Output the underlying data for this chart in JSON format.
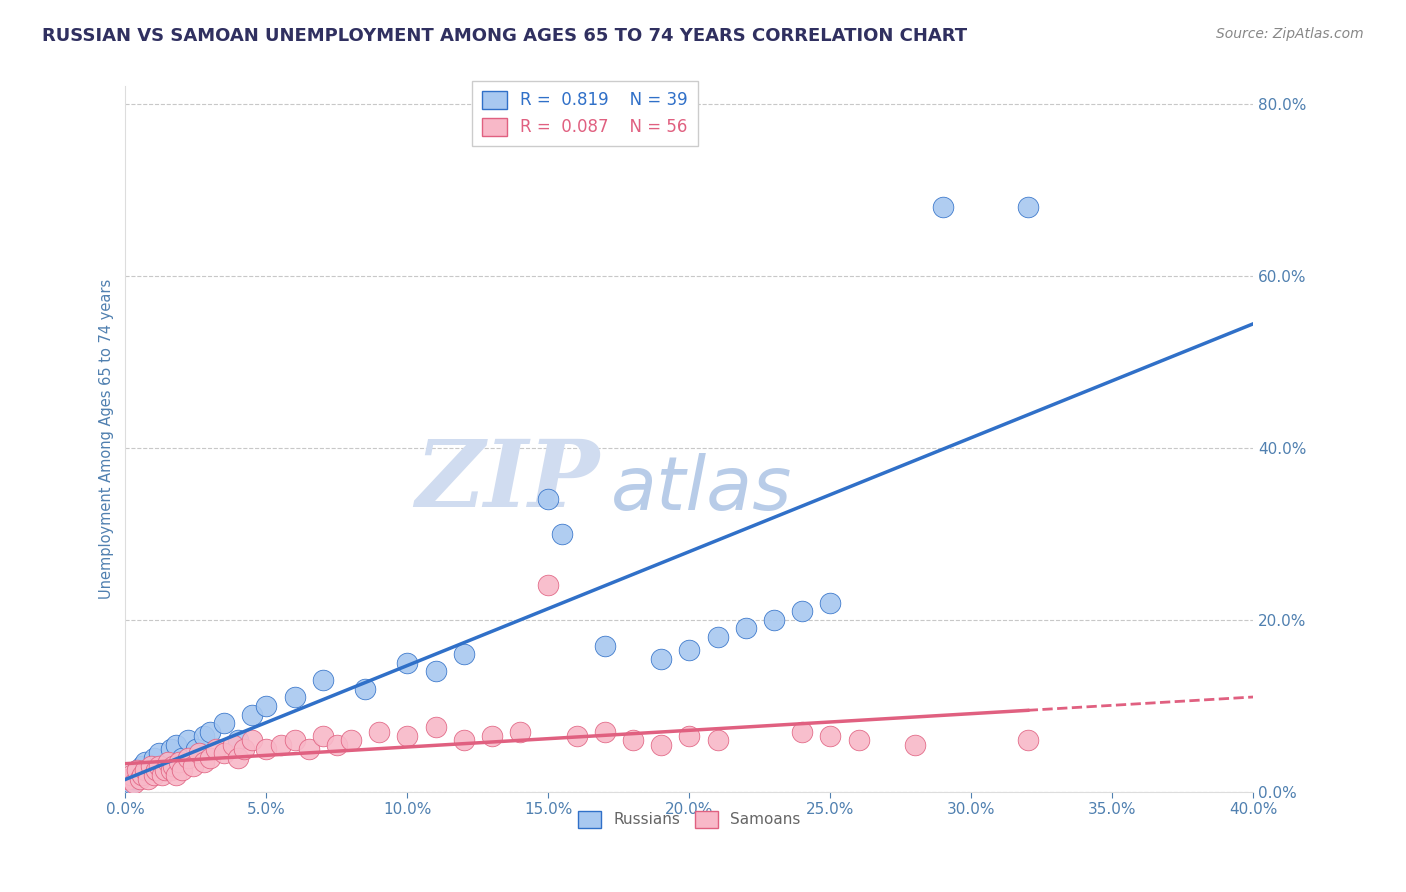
{
  "title": "RUSSIAN VS SAMOAN UNEMPLOYMENT AMONG AGES 65 TO 74 YEARS CORRELATION CHART",
  "source": "Source: ZipAtlas.com",
  "ylabel": "Unemployment Among Ages 65 to 74 years",
  "xlim": [
    0.0,
    0.4
  ],
  "ylim": [
    0.0,
    0.82
  ],
  "yticks": [
    0.0,
    0.2,
    0.4,
    0.6,
    0.8
  ],
  "xticks": [
    0.0,
    0.05,
    0.1,
    0.15,
    0.2,
    0.25,
    0.3,
    0.35,
    0.4
  ],
  "russian_color": "#A8C8F0",
  "samoan_color": "#F8B8C8",
  "russian_line_color": "#3070C8",
  "samoan_line_color": "#E06080",
  "legend_R_russian": "R =  0.819",
  "legend_N_russian": "N = 39",
  "legend_R_samoan": "R =  0.087",
  "legend_N_samoan": "N = 56",
  "russian_x": [
    0.002,
    0.003,
    0.004,
    0.005,
    0.006,
    0.007,
    0.008,
    0.01,
    0.012,
    0.014,
    0.016,
    0.018,
    0.02,
    0.022,
    0.025,
    0.028,
    0.03,
    0.035,
    0.04,
    0.045,
    0.05,
    0.06,
    0.07,
    0.085,
    0.1,
    0.11,
    0.12,
    0.15,
    0.155,
    0.17,
    0.19,
    0.2,
    0.21,
    0.22,
    0.23,
    0.24,
    0.25,
    0.29,
    0.32
  ],
  "russian_y": [
    0.01,
    0.015,
    0.025,
    0.02,
    0.03,
    0.035,
    0.025,
    0.04,
    0.045,
    0.03,
    0.05,
    0.055,
    0.04,
    0.06,
    0.05,
    0.065,
    0.07,
    0.08,
    0.06,
    0.09,
    0.1,
    0.11,
    0.13,
    0.12,
    0.15,
    0.14,
    0.16,
    0.34,
    0.3,
    0.17,
    0.155,
    0.165,
    0.18,
    0.19,
    0.2,
    0.21,
    0.22,
    0.68,
    0.68
  ],
  "samoan_x": [
    0.001,
    0.002,
    0.003,
    0.004,
    0.005,
    0.006,
    0.007,
    0.008,
    0.009,
    0.01,
    0.011,
    0.012,
    0.013,
    0.014,
    0.015,
    0.016,
    0.017,
    0.018,
    0.019,
    0.02,
    0.022,
    0.024,
    0.026,
    0.028,
    0.03,
    0.032,
    0.035,
    0.038,
    0.04,
    0.042,
    0.045,
    0.05,
    0.055,
    0.06,
    0.065,
    0.07,
    0.075,
    0.08,
    0.09,
    0.1,
    0.11,
    0.12,
    0.13,
    0.14,
    0.15,
    0.16,
    0.17,
    0.18,
    0.19,
    0.2,
    0.21,
    0.24,
    0.25,
    0.26,
    0.28,
    0.32
  ],
  "samoan_y": [
    0.015,
    0.02,
    0.01,
    0.025,
    0.015,
    0.02,
    0.025,
    0.015,
    0.03,
    0.02,
    0.025,
    0.03,
    0.02,
    0.025,
    0.035,
    0.025,
    0.03,
    0.02,
    0.035,
    0.025,
    0.04,
    0.03,
    0.045,
    0.035,
    0.04,
    0.05,
    0.045,
    0.055,
    0.04,
    0.05,
    0.06,
    0.05,
    0.055,
    0.06,
    0.05,
    0.065,
    0.055,
    0.06,
    0.07,
    0.065,
    0.075,
    0.06,
    0.065,
    0.07,
    0.24,
    0.065,
    0.07,
    0.06,
    0.055,
    0.065,
    0.06,
    0.07,
    0.065,
    0.06,
    0.055,
    0.06
  ],
  "background_color": "#FFFFFF",
  "grid_color": "#C8C8C8",
  "title_color": "#303060",
  "axis_label_color": "#5080B0",
  "tick_color": "#5080B0",
  "watermark_zip_color": "#D0DCF0",
  "watermark_atlas_color": "#B8CCE8"
}
